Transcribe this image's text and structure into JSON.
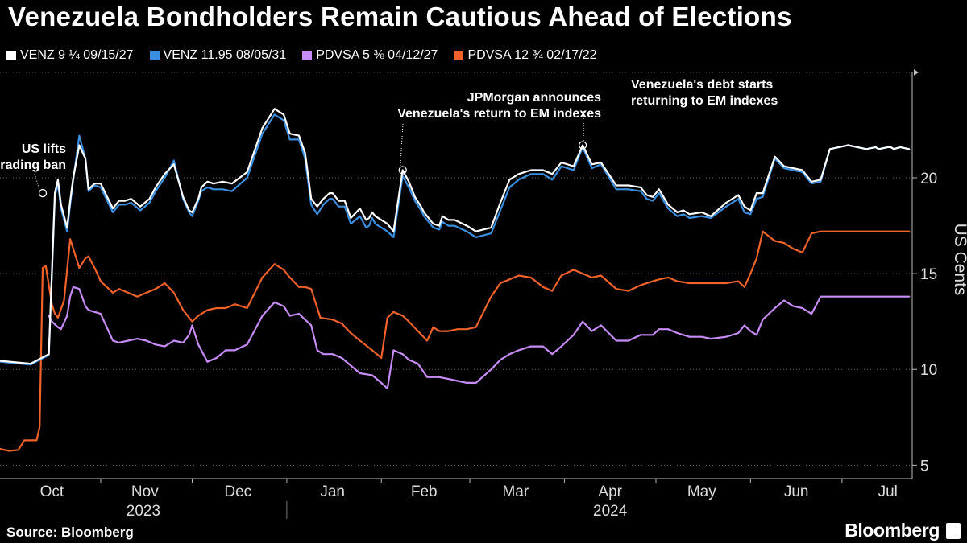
{
  "title": "Venezuela Bondholders Remain Cautious Ahead of Elections",
  "source": "Source: Bloomberg",
  "brand": "Bloomberg",
  "chart_data": {
    "type": "line",
    "title": "Venezuela Bondholders Remain Cautious Ahead of Elections",
    "ylabel": "US Cents",
    "ylim": [
      4.3,
      25.5
    ],
    "yticks": [
      5,
      10,
      15,
      20
    ],
    "grid": true,
    "legend_position": "top-left",
    "x_domain": [
      -2,
      297
    ],
    "x_unit": "days since 2023-10-01",
    "months": [
      {
        "label": "Oct",
        "center": 15
      },
      {
        "label": "Nov",
        "center": 45.5
      },
      {
        "label": "Dec",
        "center": 76
      },
      {
        "label": "Jan",
        "center": 107
      },
      {
        "label": "Feb",
        "center": 137
      },
      {
        "label": "Mar",
        "center": 167
      },
      {
        "label": "Apr",
        "center": 198
      },
      {
        "label": "May",
        "center": 228
      },
      {
        "label": "Jun",
        "center": 259
      },
      {
        "label": "Jul",
        "center": 289
      }
    ],
    "month_boundaries": [
      31,
      61,
      92,
      123,
      152,
      183,
      213,
      244,
      274
    ],
    "years": [
      {
        "label": "2023",
        "center": 45
      },
      {
        "label": "2024",
        "center": 198
      }
    ],
    "year_divider": 92,
    "series": [
      {
        "name": "VENZ 9 ¼ 09/15/27",
        "color": "#ffffff",
        "x": [
          -2,
          8,
          14,
          16,
          17,
          18,
          20,
          21,
          22,
          24,
          26,
          27,
          29,
          31,
          35,
          37,
          39,
          41,
          44,
          47,
          49,
          52,
          55,
          58,
          60,
          61,
          63,
          64,
          66,
          68,
          71,
          74,
          79,
          84,
          88,
          91,
          93,
          96,
          98,
          100,
          102,
          104,
          106,
          107,
          109,
          111,
          113,
          116,
          118,
          119,
          120,
          121,
          123,
          125,
          127,
          130,
          132,
          134,
          136,
          137,
          138,
          140,
          142,
          143,
          145,
          147,
          151,
          154,
          159,
          162,
          165,
          168,
          172,
          176,
          179,
          182,
          186,
          189,
          192,
          195,
          200,
          204,
          208,
          210,
          212,
          214,
          217,
          220,
          222,
          224,
          228,
          231,
          236,
          240,
          242,
          244,
          246,
          248,
          252,
          255,
          258,
          261,
          264,
          267,
          270,
          273,
          276,
          279,
          282,
          285,
          286,
          289,
          290,
          291,
          293,
          296
        ],
        "y": [
          10.45,
          10.3,
          10.8,
          19.2,
          19.9,
          18.6,
          17.4,
          18.8,
          20.0,
          21.7,
          21.0,
          19.4,
          19.7,
          19.7,
          18.4,
          18.8,
          18.8,
          18.9,
          18.5,
          18.9,
          19.5,
          20.2,
          20.7,
          19.0,
          18.3,
          18.2,
          18.9,
          19.5,
          19.8,
          19.7,
          19.8,
          19.7,
          20.3,
          22.6,
          23.6,
          23.3,
          22.3,
          22.2,
          21.3,
          18.9,
          18.5,
          18.9,
          19.2,
          19.2,
          18.8,
          18.8,
          17.9,
          18.4,
          17.8,
          17.9,
          18.2,
          18.0,
          17.8,
          17.6,
          17.2,
          20.4,
          19.8,
          19.0,
          18.5,
          18.2,
          18.0,
          17.6,
          17.5,
          18.0,
          17.8,
          17.8,
          17.5,
          17.2,
          17.4,
          18.7,
          19.9,
          20.2,
          20.4,
          20.4,
          20.2,
          20.8,
          20.6,
          21.7,
          20.7,
          20.8,
          19.6,
          19.6,
          19.5,
          19.1,
          19.0,
          19.4,
          18.6,
          18.2,
          18.3,
          18.1,
          18.2,
          18.0,
          18.7,
          19.1,
          18.5,
          18.3,
          19.2,
          19.2,
          21.1,
          20.6,
          20.5,
          20.4,
          19.8,
          19.9,
          21.5,
          21.6,
          21.7,
          21.6,
          21.5,
          21.6,
          21.5,
          21.6,
          21.6,
          21.5,
          21.6,
          21.5
        ]
      },
      {
        "name": "VENZ 11.95 08/05/31",
        "color": "#3a8fe0",
        "x": [
          -2,
          8,
          14,
          16,
          17,
          18,
          20,
          21,
          22,
          24,
          26,
          27,
          29,
          31,
          35,
          37,
          39,
          41,
          44,
          47,
          49,
          52,
          55,
          58,
          60,
          61,
          63,
          64,
          66,
          68,
          71,
          74,
          79,
          84,
          88,
          91,
          93,
          96,
          98,
          100,
          102,
          104,
          106,
          107,
          109,
          111,
          113,
          116,
          118,
          119,
          120,
          121,
          123,
          125,
          127,
          130,
          132,
          134,
          136,
          137,
          138,
          140,
          142,
          143,
          145,
          147,
          151,
          154,
          159,
          162,
          165,
          168,
          172,
          176,
          179,
          182,
          186,
          189,
          192,
          195,
          200,
          204,
          208,
          210,
          212,
          214,
          217,
          220,
          222,
          224,
          228,
          231,
          236,
          240,
          242,
          244,
          246,
          248,
          252,
          255,
          258,
          261,
          264,
          267,
          270,
          273,
          276,
          279,
          282,
          285,
          286,
          289,
          290,
          291,
          293,
          296
        ],
        "y": [
          10.4,
          10.25,
          10.75,
          19.0,
          19.7,
          18.4,
          17.2,
          18.6,
          19.9,
          22.2,
          21.0,
          19.3,
          19.6,
          19.5,
          18.2,
          18.6,
          18.6,
          18.7,
          18.3,
          18.7,
          19.3,
          20.0,
          20.9,
          18.9,
          18.2,
          18.0,
          18.8,
          19.3,
          19.5,
          19.4,
          19.4,
          19.3,
          20.0,
          22.3,
          23.3,
          23.0,
          22.0,
          22.0,
          21.0,
          18.6,
          18.1,
          18.6,
          18.9,
          18.9,
          18.5,
          18.5,
          17.6,
          18.0,
          17.4,
          17.5,
          17.9,
          17.6,
          17.4,
          17.2,
          16.9,
          20.1,
          19.5,
          18.8,
          18.3,
          18.0,
          17.8,
          17.4,
          17.3,
          17.7,
          17.5,
          17.5,
          17.2,
          16.9,
          17.1,
          18.3,
          19.5,
          19.9,
          20.2,
          20.2,
          19.9,
          20.6,
          20.4,
          21.6,
          20.5,
          20.7,
          19.4,
          19.4,
          19.3,
          18.9,
          18.8,
          19.2,
          18.4,
          18.0,
          18.1,
          17.9,
          18.0,
          17.9,
          18.5,
          18.9,
          18.2,
          18.1,
          18.9,
          19.0,
          21.0,
          20.5,
          20.4,
          20.3,
          19.7,
          19.8,
          21.5,
          21.6,
          21.7,
          21.6,
          21.5,
          21.6,
          21.5,
          21.6,
          21.6,
          21.5,
          21.6,
          21.5
        ]
      },
      {
        "name": "PDVSA 5 ⅜ 04/12/27",
        "color": "#c78cf7",
        "x": [
          14,
          15,
          17,
          18,
          20,
          21,
          22,
          24,
          26,
          27,
          29,
          31,
          35,
          37,
          40,
          43,
          46,
          49,
          52,
          55,
          58,
          60,
          61,
          63,
          66,
          69,
          72,
          75,
          79,
          84,
          88,
          91,
          93,
          96,
          98,
          100,
          102,
          104,
          107,
          110,
          113,
          116,
          120,
          123,
          125,
          127,
          130,
          132,
          135,
          138,
          142,
          145,
          148,
          151,
          154,
          159,
          162,
          165,
          168,
          172,
          176,
          179,
          182,
          186,
          189,
          192,
          195,
          200,
          204,
          208,
          212,
          214,
          217,
          220,
          224,
          228,
          231,
          236,
          240,
          242,
          244,
          246,
          248,
          252,
          255,
          258,
          261,
          264,
          267,
          270,
          273,
          276,
          279,
          282,
          285,
          286,
          289,
          290,
          291,
          293,
          296
        ],
        "y": [
          12.8,
          12.5,
          12.2,
          12.1,
          12.8,
          13.8,
          14.3,
          14.2,
          13.3,
          13.1,
          13.0,
          12.9,
          11.5,
          11.4,
          11.5,
          11.6,
          11.5,
          11.3,
          11.2,
          11.5,
          11.4,
          11.8,
          12.3,
          11.3,
          10.4,
          10.6,
          11.0,
          11.0,
          11.3,
          12.8,
          13.5,
          13.3,
          12.8,
          12.9,
          12.6,
          12.3,
          11.0,
          10.8,
          10.8,
          10.6,
          10.2,
          9.8,
          9.7,
          9.3,
          9.0,
          11.0,
          10.8,
          10.5,
          10.3,
          9.6,
          9.6,
          9.5,
          9.4,
          9.3,
          9.3,
          10.0,
          10.5,
          10.8,
          11.0,
          11.2,
          11.2,
          10.8,
          11.2,
          11.8,
          12.5,
          12.0,
          12.3,
          11.5,
          11.5,
          11.8,
          11.8,
          12.1,
          12.1,
          11.9,
          11.7,
          11.7,
          11.6,
          11.7,
          11.9,
          12.3,
          12.0,
          11.8,
          12.6,
          13.2,
          13.6,
          13.3,
          13.2,
          12.9,
          13.8,
          13.8,
          13.8,
          13.8,
          13.8,
          13.8,
          13.8,
          13.8,
          13.8,
          13.8,
          13.8,
          13.8,
          13.8
        ]
      },
      {
        "name": "PDVSA 12 ¾ 02/17/22",
        "color": "#f0622a",
        "x": [
          -2,
          1,
          4,
          6,
          10,
          11,
          12,
          13,
          15,
          16,
          17,
          19,
          21,
          22,
          24,
          26,
          27,
          29,
          31,
          35,
          37,
          40,
          43,
          46,
          49,
          52,
          55,
          58,
          61,
          63,
          66,
          69,
          72,
          75,
          79,
          84,
          88,
          91,
          93,
          96,
          98,
          100,
          103,
          107,
          110,
          113,
          116,
          120,
          123,
          125,
          127,
          130,
          132,
          135,
          138,
          140,
          142,
          145,
          148,
          151,
          154,
          159,
          162,
          165,
          168,
          172,
          176,
          179,
          182,
          186,
          189,
          192,
          195,
          200,
          204,
          208,
          212,
          214,
          217,
          220,
          224,
          228,
          231,
          236,
          240,
          242,
          244,
          246,
          248,
          252,
          255,
          258,
          261,
          264,
          267,
          270,
          273,
          276,
          279,
          282,
          285,
          286,
          289,
          290,
          291,
          293,
          296
        ],
        "y": [
          5.85,
          5.75,
          5.8,
          6.3,
          6.3,
          7.0,
          15.3,
          15.4,
          13.4,
          12.9,
          12.7,
          13.6,
          16.8,
          16.3,
          15.3,
          15.8,
          15.9,
          15.3,
          14.6,
          14.0,
          14.2,
          14.0,
          13.8,
          14.0,
          14.2,
          14.5,
          14.0,
          13.1,
          12.5,
          12.8,
          13.1,
          13.2,
          13.2,
          13.4,
          13.2,
          14.8,
          15.5,
          15.2,
          14.8,
          14.3,
          14.3,
          14.2,
          12.7,
          12.6,
          12.4,
          11.9,
          11.5,
          11.0,
          10.6,
          12.7,
          13.0,
          12.8,
          12.5,
          12.0,
          11.5,
          12.2,
          12.0,
          12.0,
          12.1,
          12.1,
          12.2,
          13.8,
          14.5,
          14.7,
          14.9,
          14.8,
          14.3,
          14.1,
          14.9,
          15.2,
          15.0,
          14.8,
          14.9,
          14.2,
          14.1,
          14.4,
          14.6,
          14.7,
          14.8,
          14.6,
          14.5,
          14.5,
          14.5,
          14.5,
          14.6,
          14.3,
          15.0,
          15.8,
          17.2,
          16.7,
          16.6,
          16.3,
          16.1,
          17.1,
          17.2,
          17.2,
          17.2,
          17.2,
          17.2,
          17.2,
          17.2,
          17.2,
          17.2,
          17.2,
          17.2,
          17.2,
          17.2
        ]
      }
    ],
    "annotations": [
      {
        "text": [
          "US lifts",
          "trading ban"
        ],
        "x": 12,
        "y": 19.2,
        "anchor": "end"
      },
      {
        "text": [
          "JPMorgan announces",
          "Venezuela's return to EM indexes"
        ],
        "x": 130,
        "y": 20.4,
        "anchor": "end"
      },
      {
        "text": [
          "Venezuela's debt starts",
          "returning to EM indexes"
        ],
        "x": 189,
        "y": 21.7,
        "anchor": "start"
      }
    ]
  }
}
